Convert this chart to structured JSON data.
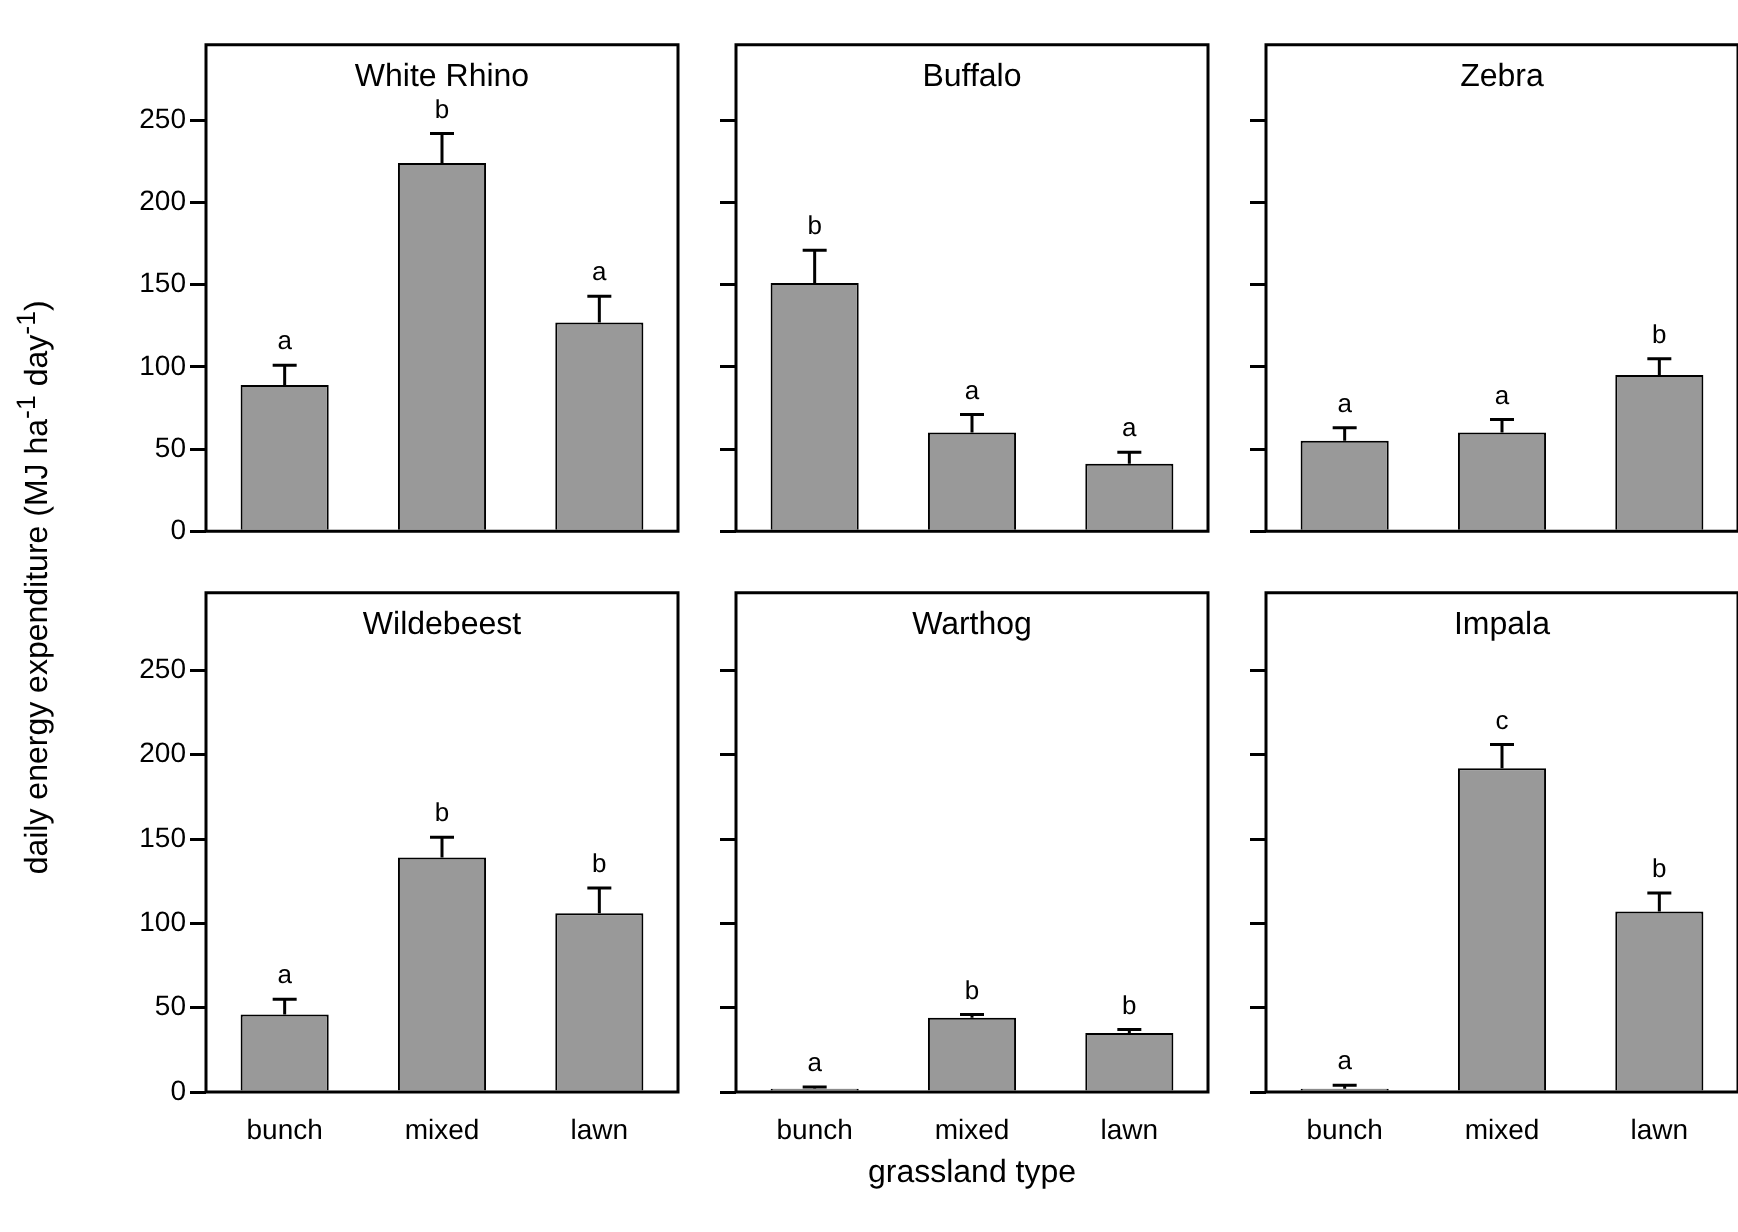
{
  "chart_data": [
    {
      "type": "bar",
      "title": "White Rhino",
      "ylabel": "daily energy expenditure (MJ ha$^{-1}$ day$^{-1}$)",
      "categories": [
        "bunch",
        "mixed",
        "lawn"
      ],
      "values": [
        89,
        224,
        127
      ],
      "errors": [
        [
          89,
          101
        ],
        [
          224,
          242
        ],
        [
          127,
          143
        ]
      ],
      "color": "#999999",
      "ylim": [
        0,
        296
      ],
      "yticks": [
        0,
        50,
        100,
        150,
        200,
        250
      ],
      "tick_labels": "y",
      "annotations": [
        {
          "text": "a",
          "x": "bunch",
          "y": 101
        },
        {
          "text": "b",
          "x": "mixed",
          "y": 242
        },
        {
          "text": "a",
          "x": "lawn",
          "y": 143
        }
      ]
    },
    {
      "type": "bar",
      "title": "Buffalo",
      "categories": [
        "bunch",
        "mixed",
        "lawn"
      ],
      "values": [
        151,
        60,
        41
      ],
      "errors": [
        [
          151,
          171
        ],
        [
          60,
          71
        ],
        [
          41,
          48
        ]
      ],
      "color": "#999999",
      "ylim": [
        0,
        296
      ],
      "yticks": [
        0,
        50,
        100,
        150,
        200,
        250
      ],
      "tick_labels": false,
      "annotations": [
        {
          "text": "b",
          "x": "bunch",
          "y": 171
        },
        {
          "text": "a",
          "x": "mixed",
          "y": 71
        },
        {
          "text": "a",
          "x": "lawn",
          "y": 48
        }
      ]
    },
    {
      "type": "bar",
      "title": "Zebra",
      "categories": [
        "bunch",
        "mixed",
        "lawn"
      ],
      "values": [
        55,
        60,
        95
      ],
      "errors": [
        [
          55,
          63
        ],
        [
          60,
          68
        ],
        [
          95,
          105
        ]
      ],
      "color": "#999999",
      "ylim": [
        0,
        296
      ],
      "yticks": [
        0,
        50,
        100,
        150,
        200,
        250
      ],
      "tick_labels": false,
      "annotations": [
        {
          "text": "a",
          "x": "bunch",
          "y": 63
        },
        {
          "text": "a",
          "x": "mixed",
          "y": 68
        },
        {
          "text": "b",
          "x": "lawn",
          "y": 105
        }
      ]
    },
    {
      "type": "bar",
      "title": "Wildebeest",
      "categories": [
        "bunch",
        "mixed",
        "lawn"
      ],
      "values": [
        46,
        139,
        106
      ],
      "errors": [
        [
          46,
          55
        ],
        [
          139,
          151
        ],
        [
          106,
          121
        ]
      ],
      "color": "#999999",
      "ylim": [
        0,
        296
      ],
      "yticks": [
        0,
        50,
        100,
        150,
        200,
        250
      ],
      "annotations": [
        {
          "text": "a",
          "x": "bunch",
          "y": 55
        },
        {
          "text": "b",
          "x": "mixed",
          "y": 151
        },
        {
          "text": "b",
          "x": "lawn",
          "y": 121
        }
      ]
    },
    {
      "type": "bar",
      "title": "Warthog",
      "xlabel": "grassland type",
      "categories": [
        "bunch",
        "mixed",
        "lawn"
      ],
      "values": [
        2,
        44,
        35
      ],
      "errors": [
        [
          2,
          3
        ],
        [
          44,
          46
        ],
        [
          35,
          37
        ]
      ],
      "color": "#999999",
      "ylim": [
        0,
        296
      ],
      "yticks": [
        0,
        50,
        100,
        150,
        200,
        250
      ],
      "tick_labels": "x",
      "annotations": [
        {
          "text": "a",
          "x": "bunch",
          "y": 3
        },
        {
          "text": "b",
          "x": "mixed",
          "y": 46
        },
        {
          "text": "b",
          "x": "lawn",
          "y": 37
        }
      ]
    },
    {
      "type": "bar",
      "title": "Impala",
      "categories": [
        "bunch",
        "mixed",
        "lawn"
      ],
      "values": [
        2,
        192,
        107
      ],
      "errors": [
        [
          2,
          4
        ],
        [
          192,
          206
        ],
        [
          107,
          118
        ]
      ],
      "color": "#999999",
      "ylim": [
        0,
        296
      ],
      "yticks": [
        0,
        50,
        100,
        150,
        200,
        250
      ],
      "tick_labels": "x",
      "annotations": [
        {
          "text": "a",
          "x": "bunch",
          "y": 4
        },
        {
          "text": "c",
          "x": "mixed",
          "y": 206
        },
        {
          "text": "b",
          "x": "lawn",
          "y": 118
        }
      ]
    }
  ]
}
